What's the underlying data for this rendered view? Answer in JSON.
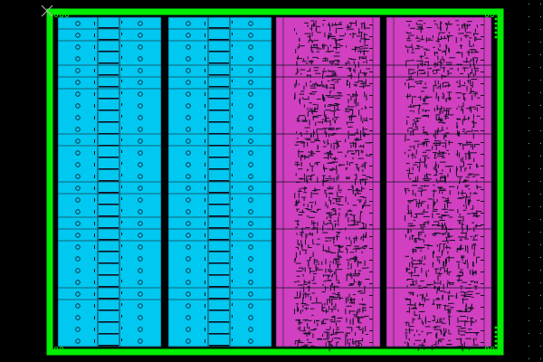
{
  "view": {
    "background": "#000000",
    "grid_dot_color": "#9a9a9a"
  },
  "layout": {
    "boundary_color": "#00ee00",
    "origin_marker_icon": "cross-icon",
    "columns": [
      {
        "kind": "memory-array",
        "fill": "#00c8f0"
      },
      {
        "kind": "memory-array",
        "fill": "#00c8f0"
      },
      {
        "kind": "logic-cells",
        "fill": "#d040c0"
      },
      {
        "kind": "logic-cells",
        "fill": "#d040c0"
      }
    ],
    "feature_color": "#101020"
  }
}
